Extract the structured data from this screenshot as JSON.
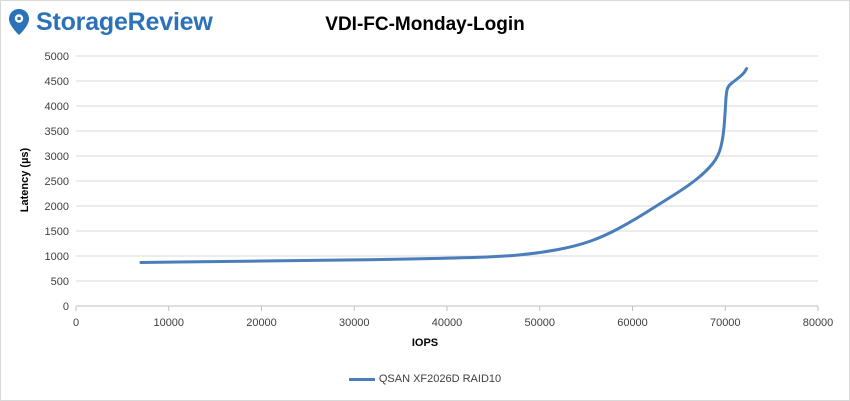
{
  "brand": {
    "name": "StorageReview",
    "logo_icon": "storagereview-pin-icon",
    "color": "#2b72b9"
  },
  "chart_data": {
    "type": "line",
    "title": "VDI-FC-Monday-Login",
    "xlabel": "IOPS",
    "ylabel": "Latency (µs)",
    "xlim": [
      0,
      80000
    ],
    "ylim": [
      0,
      5000
    ],
    "xticks": [
      0,
      10000,
      20000,
      30000,
      40000,
      50000,
      60000,
      70000,
      80000
    ],
    "yticks": [
      0,
      500,
      1000,
      1500,
      2000,
      2500,
      3000,
      3500,
      4000,
      4500,
      5000
    ],
    "grid": true,
    "legend_position": "bottom",
    "series": [
      {
        "name": "QSAN XF2026D RAID10",
        "color": "#4a7ebb",
        "x": [
          7000,
          15000,
          25000,
          35000,
          42000,
          46000,
          50000,
          54000,
          57000,
          60000,
          63000,
          66000,
          68000,
          69300,
          69800,
          70000,
          70100,
          70300,
          71000,
          72000,
          72300
        ],
        "y": [
          870,
          890,
          910,
          935,
          965,
          990,
          1060,
          1200,
          1400,
          1700,
          2050,
          2400,
          2700,
          3000,
          3400,
          3900,
          4250,
          4400,
          4500,
          4650,
          4750
        ]
      }
    ]
  }
}
